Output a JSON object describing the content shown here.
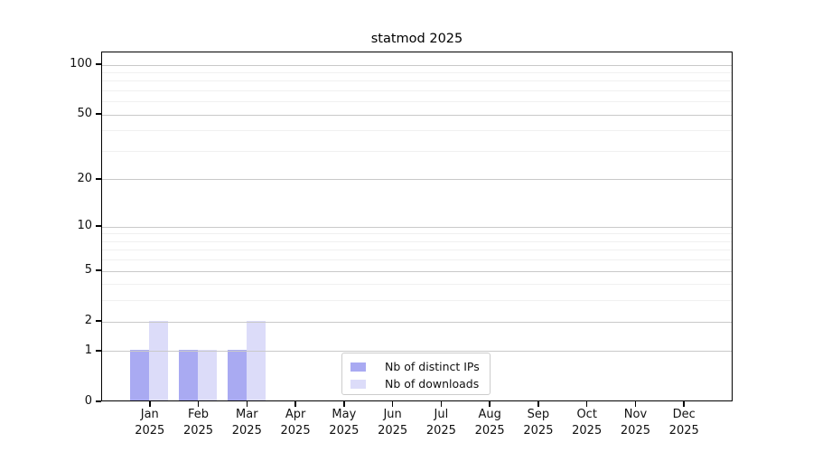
{
  "chart_data": {
    "type": "bar",
    "title": "statmod 2025",
    "categories": [
      "Jan 2025",
      "Feb 2025",
      "Mar 2025",
      "Apr 2025",
      "May 2025",
      "Jun 2025",
      "Jul 2025",
      "Aug 2025",
      "Sep 2025",
      "Oct 2025",
      "Nov 2025",
      "Dec 2025"
    ],
    "series": [
      {
        "name": "Nb of distinct IPs",
        "color": "#a9aaf2",
        "values": [
          1,
          1,
          1,
          0,
          0,
          0,
          0,
          0,
          0,
          0,
          0,
          0
        ]
      },
      {
        "name": "Nb of downloads",
        "color": "#dcdcf9",
        "values": [
          2,
          1,
          2,
          0,
          0,
          0,
          0,
          0,
          0,
          0,
          0,
          0
        ]
      }
    ],
    "xlabel": "",
    "ylabel": "",
    "yscale": "log1p",
    "ylim": [
      0,
      120
    ],
    "y_major_ticks": [
      0,
      1,
      2,
      5,
      10,
      20,
      50,
      100
    ],
    "y_minor_ticks": [
      3,
      4,
      6,
      7,
      8,
      9,
      30,
      40,
      60,
      70,
      80,
      90
    ],
    "grid": true,
    "legend_position": "lower center",
    "colors": {
      "major_grid": "#c9c9c9",
      "minor_grid": "#f0f0f0",
      "spine": "#000000",
      "text": "#111111"
    }
  }
}
